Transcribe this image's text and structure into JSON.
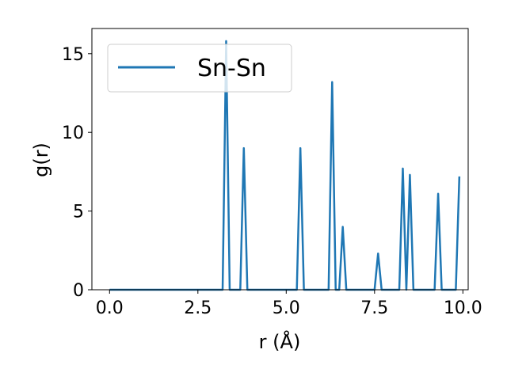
{
  "chart_data": {
    "type": "line",
    "title": "",
    "xlabel": "r (Å)",
    "ylabel": "g(r)",
    "xlim": [
      -0.5,
      10.15
    ],
    "ylim": [
      0,
      16.6
    ],
    "xticks": [
      0.0,
      2.5,
      5.0,
      7.5,
      10.0
    ],
    "xtick_labels": [
      "0.0",
      "2.5",
      "5.0",
      "7.5",
      "10.0"
    ],
    "yticks": [
      0,
      5,
      10,
      15
    ],
    "ytick_labels": [
      "0",
      "5",
      "10",
      "15"
    ],
    "grid": false,
    "legend_position": "top-left",
    "series": [
      {
        "name": "Sn-Sn",
        "color": "#1f77b4",
        "x": [
          0.0,
          3.2,
          3.3,
          3.4,
          3.7,
          3.8,
          3.9,
          5.3,
          5.4,
          5.5,
          6.2,
          6.3,
          6.4,
          6.5,
          6.6,
          6.7,
          7.5,
          7.6,
          7.7,
          8.2,
          8.3,
          8.4,
          8.5,
          8.6,
          9.2,
          9.3,
          9.4,
          9.8,
          9.9
        ],
        "values": [
          0,
          0,
          15.8,
          0,
          0,
          9.0,
          0,
          0,
          9.0,
          0,
          0,
          13.2,
          0,
          0,
          4.0,
          0,
          0,
          2.3,
          0,
          0,
          7.7,
          0,
          7.3,
          0,
          0,
          6.1,
          0,
          0,
          7.2
        ]
      }
    ]
  }
}
